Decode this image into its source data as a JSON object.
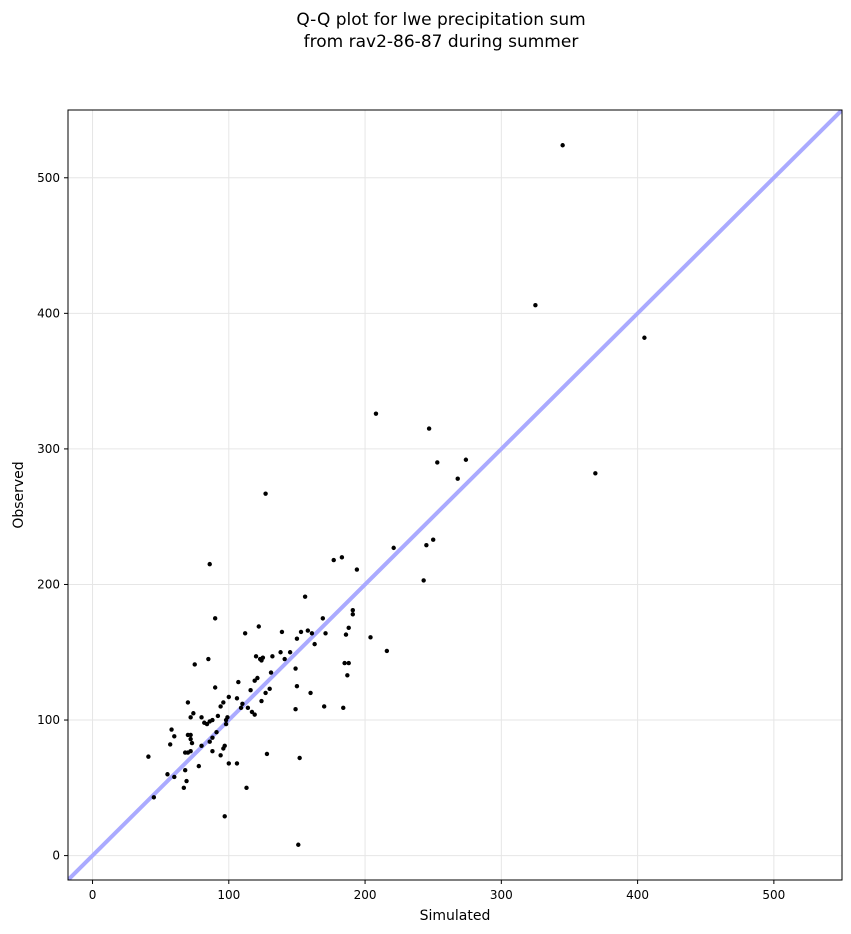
{
  "chart_data": {
    "type": "scatter",
    "title_lines": [
      "Q-Q plot for lwe precipitation sum",
      "from rav2-86-87 during summer"
    ],
    "xlabel": "Simulated",
    "ylabel": "Observed",
    "xlim": [
      -18,
      550
    ],
    "ylim": [
      -18,
      550
    ],
    "xticks": [
      0,
      100,
      200,
      300,
      400,
      500
    ],
    "yticks": [
      0,
      100,
      200,
      300,
      400,
      500
    ],
    "grid": true,
    "reference_line": {
      "from": [
        -18,
        -18
      ],
      "to": [
        550,
        550
      ],
      "color": "#aaaaff"
    },
    "point_color": "#000000",
    "points": [
      [
        345,
        524
      ],
      [
        325,
        406
      ],
      [
        405,
        382
      ],
      [
        369,
        282
      ],
      [
        208,
        326
      ],
      [
        247,
        315
      ],
      [
        253,
        290
      ],
      [
        274,
        292
      ],
      [
        268,
        278
      ],
      [
        221,
        227
      ],
      [
        245,
        229
      ],
      [
        250,
        233
      ],
      [
        243,
        203
      ],
      [
        177,
        218
      ],
      [
        183,
        220
      ],
      [
        194,
        211
      ],
      [
        127,
        267
      ],
      [
        86,
        215
      ],
      [
        156,
        191
      ],
      [
        169,
        175
      ],
      [
        191,
        181
      ],
      [
        191,
        178
      ],
      [
        188,
        168
      ],
      [
        186,
        163
      ],
      [
        204,
        161
      ],
      [
        216,
        151
      ],
      [
        185,
        142
      ],
      [
        188,
        142
      ],
      [
        187,
        133
      ],
      [
        184,
        109
      ],
      [
        170,
        110
      ],
      [
        160,
        120
      ],
      [
        150,
        125
      ],
      [
        149,
        138
      ],
      [
        149,
        108
      ],
      [
        152,
        72
      ],
      [
        151,
        8
      ],
      [
        158,
        166
      ],
      [
        161,
        164
      ],
      [
        163,
        156
      ],
      [
        171,
        164
      ],
      [
        153,
        165
      ],
      [
        150,
        160
      ],
      [
        139,
        165
      ],
      [
        145,
        150
      ],
      [
        138,
        150
      ],
      [
        132,
        147
      ],
      [
        141,
        145
      ],
      [
        122,
        169
      ],
      [
        112,
        164
      ],
      [
        120,
        147
      ],
      [
        125,
        146
      ],
      [
        123,
        145
      ],
      [
        124,
        144
      ],
      [
        121,
        131
      ],
      [
        119,
        129
      ],
      [
        127,
        120
      ],
      [
        130,
        123
      ],
      [
        131,
        135
      ],
      [
        116,
        122
      ],
      [
        124,
        114
      ],
      [
        117,
        106
      ],
      [
        119,
        104
      ],
      [
        114,
        109
      ],
      [
        107,
        128
      ],
      [
        110,
        112
      ],
      [
        109,
        109
      ],
      [
        106,
        116
      ],
      [
        100,
        117
      ],
      [
        99,
        102
      ],
      [
        98,
        100
      ],
      [
        98,
        97
      ],
      [
        97,
        81
      ],
      [
        96,
        79
      ],
      [
        100,
        68
      ],
      [
        106,
        68
      ],
      [
        113,
        50
      ],
      [
        97,
        29
      ],
      [
        128,
        75
      ],
      [
        90,
        175
      ],
      [
        85,
        145
      ],
      [
        90,
        124
      ],
      [
        75,
        141
      ],
      [
        92,
        103
      ],
      [
        88,
        100
      ],
      [
        86,
        99
      ],
      [
        84,
        97
      ],
      [
        82,
        98
      ],
      [
        80,
        102
      ],
      [
        96,
        113
      ],
      [
        94,
        110
      ],
      [
        91,
        91
      ],
      [
        88,
        87
      ],
      [
        86,
        84
      ],
      [
        80,
        81
      ],
      [
        88,
        77
      ],
      [
        94,
        74
      ],
      [
        78,
        66
      ],
      [
        70,
        113
      ],
      [
        72,
        102
      ],
      [
        74,
        105
      ],
      [
        72,
        89
      ],
      [
        72,
        86
      ],
      [
        70,
        89
      ],
      [
        73,
        83
      ],
      [
        72,
        77
      ],
      [
        70,
        76
      ],
      [
        68,
        76
      ],
      [
        68,
        63
      ],
      [
        69,
        55
      ],
      [
        67,
        50
      ],
      [
        58,
        93
      ],
      [
        60,
        88
      ],
      [
        57,
        82
      ],
      [
        55,
        60
      ],
      [
        60,
        58
      ],
      [
        41,
        73
      ],
      [
        45,
        43
      ]
    ]
  }
}
